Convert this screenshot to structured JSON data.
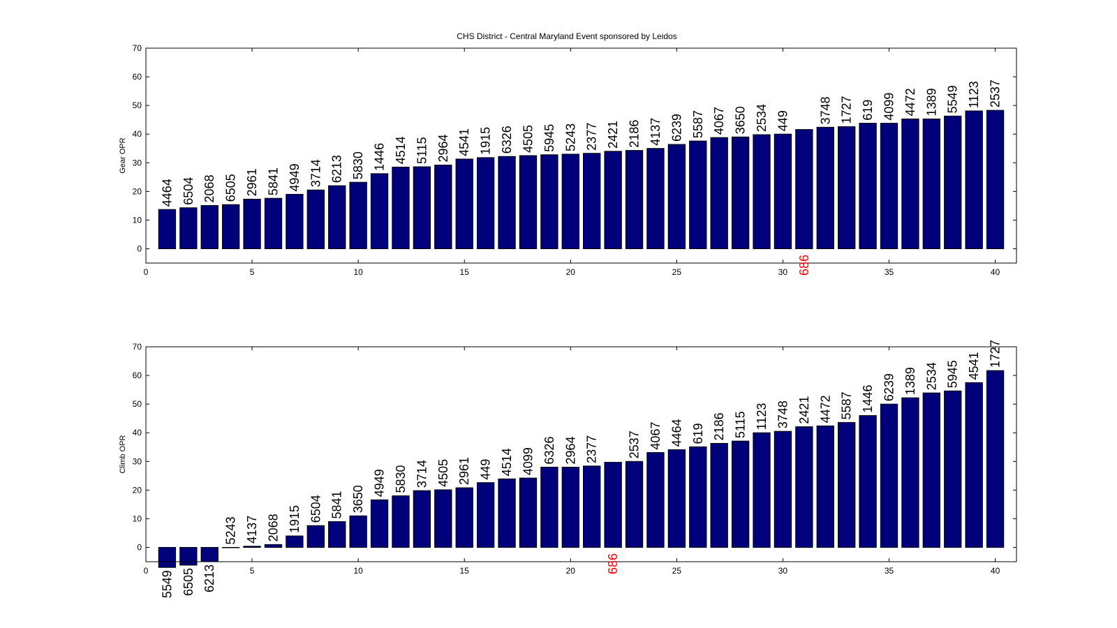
{
  "figure": {
    "title": "CHS District - Central Maryland Event sponsored by Leidos"
  },
  "colors": {
    "bar": "#00007a",
    "highlight": "#ff0000",
    "axis": "#000000",
    "background": "#ffffff"
  },
  "highlight_team": "686",
  "chart_data": [
    {
      "type": "bar",
      "title": "CHS District - Central Maryland Event sponsored by Leidos",
      "xlabel": "",
      "ylabel": "Gear OPR",
      "xlim": [
        0,
        41
      ],
      "ylim": [
        -5,
        70
      ],
      "xticks": [
        0,
        5,
        10,
        15,
        20,
        25,
        30,
        35,
        40
      ],
      "yticks": [
        0,
        10,
        20,
        30,
        40,
        50,
        60,
        70
      ],
      "grid": false,
      "x": [
        1,
        2,
        3,
        4,
        5,
        6,
        7,
        8,
        9,
        10,
        11,
        12,
        13,
        14,
        15,
        16,
        17,
        18,
        19,
        20,
        21,
        22,
        23,
        24,
        25,
        26,
        27,
        28,
        29,
        30,
        31,
        32,
        33,
        34,
        35,
        36,
        37,
        38,
        39,
        40
      ],
      "teams": [
        "4464",
        "6504",
        "2068",
        "6505",
        "2961",
        "5841",
        "4949",
        "3714",
        "6213",
        "5830",
        "1446",
        "4514",
        "5115",
        "2964",
        "4541",
        "1915",
        "6326",
        "4505",
        "5945",
        "5243",
        "2377",
        "2421",
        "2186",
        "4137",
        "6239",
        "5587",
        "4067",
        "3650",
        "2534",
        "449",
        "686",
        "3748",
        "1727",
        "619",
        "4099",
        "4472",
        "1389",
        "5549",
        "1123",
        "2537"
      ],
      "values": [
        13.7,
        14.3,
        15.1,
        15.4,
        17.3,
        17.6,
        19.0,
        20.5,
        22.0,
        23.2,
        26.2,
        28.5,
        28.6,
        29.2,
        31.3,
        31.8,
        32.2,
        32.5,
        32.8,
        33.0,
        33.3,
        34.0,
        34.3,
        35.0,
        36.4,
        37.6,
        38.8,
        39.0,
        39.8,
        40.0,
        41.6,
        42.4,
        42.6,
        43.8,
        43.8,
        45.3,
        45.3,
        46.3,
        48.1,
        48.3
      ]
    },
    {
      "type": "bar",
      "title": "",
      "xlabel": "",
      "ylabel": "Climb OPR",
      "xlim": [
        0,
        41
      ],
      "ylim": [
        -5,
        70
      ],
      "xticks": [
        0,
        5,
        10,
        15,
        20,
        25,
        30,
        35,
        40
      ],
      "yticks": [
        0,
        10,
        20,
        30,
        40,
        50,
        60,
        70
      ],
      "grid": false,
      "x": [
        1,
        2,
        3,
        4,
        5,
        6,
        7,
        8,
        9,
        10,
        11,
        12,
        13,
        14,
        15,
        16,
        17,
        18,
        19,
        20,
        21,
        22,
        23,
        24,
        25,
        26,
        27,
        28,
        29,
        30,
        31,
        32,
        33,
        34,
        35,
        36,
        37,
        38,
        39,
        40
      ],
      "teams": [
        "5549",
        "6505",
        "6213",
        "5243",
        "4137",
        "2068",
        "1915",
        "6504",
        "5841",
        "3650",
        "4949",
        "5830",
        "3714",
        "4505",
        "2961",
        "449",
        "4514",
        "4099",
        "6326",
        "2964",
        "2377",
        "686",
        "2537",
        "4067",
        "4464",
        "619",
        "2186",
        "5115",
        "1123",
        "3748",
        "2421",
        "4472",
        "5587",
        "1446",
        "6239",
        "1389",
        "2534",
        "5945",
        "4541",
        "1727"
      ],
      "values": [
        -7.0,
        -6.2,
        -5.0,
        0.0,
        0.4,
        1.0,
        4.0,
        7.6,
        9.0,
        11.0,
        16.6,
        18.0,
        19.8,
        20.1,
        20.8,
        22.6,
        23.9,
        24.2,
        28.0,
        28.0,
        28.4,
        29.7,
        30.0,
        33.1,
        34.1,
        35.1,
        36.3,
        37.1,
        40.0,
        40.5,
        42.1,
        42.4,
        43.6,
        46.0,
        50.0,
        52.2,
        53.9,
        54.6,
        57.5,
        61.7
      ]
    }
  ]
}
